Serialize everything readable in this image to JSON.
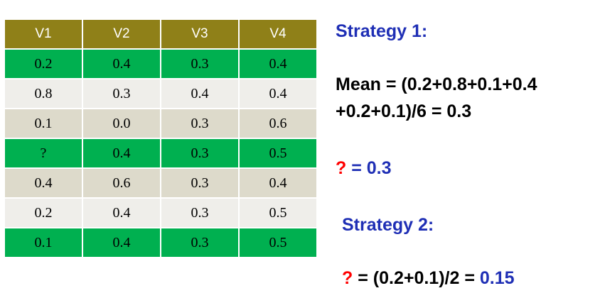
{
  "table": {
    "headers": [
      "V1",
      "V2",
      "V3",
      "V4"
    ],
    "rows": [
      {
        "style": "green",
        "cells": [
          "0.2",
          "0.4",
          "0.3",
          "0.4"
        ]
      },
      {
        "style": "light",
        "cells": [
          "0.8",
          "0.3",
          "0.4",
          "0.4"
        ]
      },
      {
        "style": "tan",
        "cells": [
          "0.1",
          "0.0",
          "0.3",
          "0.6"
        ]
      },
      {
        "style": "green",
        "cells": [
          "?",
          "0.4",
          "0.3",
          "0.5"
        ]
      },
      {
        "style": "tan",
        "cells": [
          "0.4",
          "0.6",
          "0.3",
          "0.4"
        ]
      },
      {
        "style": "light",
        "cells": [
          "0.2",
          "0.4",
          "0.3",
          "0.5"
        ]
      },
      {
        "style": "green",
        "cells": [
          "0.1",
          "0.4",
          "0.3",
          "0.5"
        ]
      }
    ]
  },
  "strategy1": {
    "title": "Strategy 1:",
    "mean_line1": "Mean = (0.2+0.8+0.1+0.4",
    "mean_line2": "+0.2+0.1)/6 = 0.3",
    "result_q": "?",
    "result_rest": " = 0.3"
  },
  "strategy2": {
    "title": "Strategy 2:",
    "result_q": "?",
    "result_mid": " = (0.2+0.1)/2 = ",
    "result_val": "0.15"
  },
  "colors": {
    "header_bg": "#8f8018",
    "row_green": "#00b050",
    "row_light": "#efeeea",
    "row_tan": "#dddacb",
    "title_blue": "#1f2fb5",
    "question_red": "#ff0000"
  }
}
